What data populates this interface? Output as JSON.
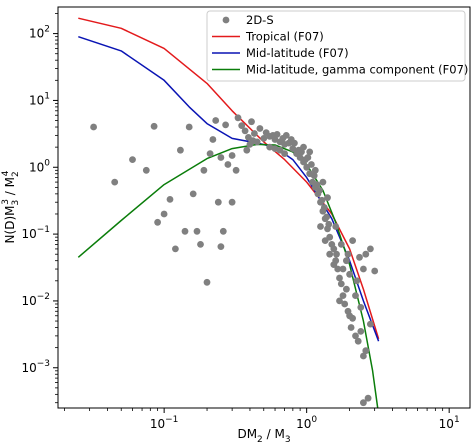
{
  "chart_data": {
    "type": "scatter",
    "title": "",
    "xlabel": {
      "base": "DM",
      "sub1": "2",
      "mid": " / M",
      "sub2": "3"
    },
    "ylabel": {
      "base": "N(D)M",
      "sub1": "3",
      "sup1": "3",
      "mid": " / M",
      "sub2": "2",
      "sup2": "4"
    },
    "xscale": "log",
    "yscale": "log",
    "xlim": [
      0.018,
      14
    ],
    "ylim": [
      0.00025,
      250
    ],
    "x_ticks": [
      {
        "value": 0.1,
        "base": "10",
        "exp": "−1"
      },
      {
        "value": 1,
        "base": "10",
        "exp": "0"
      },
      {
        "value": 10,
        "base": "10",
        "exp": "1"
      }
    ],
    "y_ticks": [
      {
        "value": 0.001,
        "base": "10",
        "exp": "−3"
      },
      {
        "value": 0.01,
        "base": "10",
        "exp": "−2"
      },
      {
        "value": 0.1,
        "base": "10",
        "exp": "−1"
      },
      {
        "value": 1,
        "base": "10",
        "exp": "0"
      },
      {
        "value": 10,
        "base": "10",
        "exp": "1"
      },
      {
        "value": 100,
        "base": "10",
        "exp": "2"
      }
    ],
    "grid": false,
    "legend_position": "top-right",
    "legend": [
      {
        "label": "2D-S",
        "kind": "marker",
        "color": "#808080"
      },
      {
        "label": "Tropical (F07)",
        "kind": "line",
        "color": "#e31a1c"
      },
      {
        "label": "Mid-latitude (F07)",
        "kind": "line",
        "color": "#0a14b4"
      },
      {
        "label": "Mid-latitude, gamma component (F07)",
        "kind": "line",
        "color": "#0a7d0a"
      }
    ],
    "series": [
      {
        "name": "Tropical (F07)",
        "kind": "line",
        "color": "#e31a1c",
        "x": [
          0.025,
          0.05,
          0.1,
          0.2,
          0.3,
          0.5,
          0.7,
          1.0,
          1.5,
          2.0,
          2.5,
          3.2
        ],
        "y": [
          170,
          120,
          60,
          18,
          7,
          2.4,
          1.3,
          0.6,
          0.2,
          0.06,
          0.015,
          0.0027
        ]
      },
      {
        "name": "Mid-latitude (F07)",
        "kind": "line",
        "color": "#0a14b4",
        "x": [
          0.025,
          0.05,
          0.1,
          0.15,
          0.2,
          0.3,
          0.45,
          0.6,
          0.8,
          1.0,
          1.5,
          2.0,
          2.5,
          3.2
        ],
        "y": [
          90,
          55,
          20,
          8,
          4.5,
          2.7,
          2.3,
          2.0,
          1.3,
          0.7,
          0.17,
          0.04,
          0.01,
          0.0025
        ]
      },
      {
        "name": "Mid-latitude, gamma component (F07)",
        "kind": "line",
        "color": "#0a7d0a",
        "x": [
          0.025,
          0.05,
          0.1,
          0.2,
          0.3,
          0.45,
          0.6,
          0.8,
          1.0,
          1.3,
          1.6,
          2.0,
          2.5,
          2.9,
          3.2
        ],
        "y": [
          0.045,
          0.16,
          0.55,
          1.35,
          1.9,
          2.2,
          2.15,
          1.7,
          1.1,
          0.45,
          0.15,
          0.035,
          0.005,
          0.0009,
          0.0002
        ]
      },
      {
        "name": "2D-S",
        "kind": "scatter",
        "color": "#808080",
        "points": [
          [
            0.032,
            4.0
          ],
          [
            0.045,
            0.6
          ],
          [
            0.06,
            1.3
          ],
          [
            0.075,
            0.9
          ],
          [
            0.085,
            4.1
          ],
          [
            0.09,
            0.15
          ],
          [
            0.1,
            0.2
          ],
          [
            0.11,
            0.33
          ],
          [
            0.12,
            0.06
          ],
          [
            0.13,
            1.8
          ],
          [
            0.14,
            0.11
          ],
          [
            0.15,
            4.0
          ],
          [
            0.16,
            0.4
          ],
          [
            0.17,
            0.11
          ],
          [
            0.18,
            0.07
          ],
          [
            0.19,
            0.9
          ],
          [
            0.2,
            0.019
          ],
          [
            0.21,
            1.6
          ],
          [
            0.22,
            2.6
          ],
          [
            0.23,
            5.0
          ],
          [
            0.24,
            0.3
          ],
          [
            0.25,
            0.065
          ],
          [
            0.26,
            0.11
          ],
          [
            0.27,
            4.3
          ],
          [
            0.28,
            1.1
          ],
          [
            0.3,
            0.3
          ],
          [
            0.32,
            0.9
          ],
          [
            0.33,
            5.5
          ],
          [
            0.35,
            4.2
          ],
          [
            0.37,
            3.5
          ],
          [
            0.39,
            2.8
          ],
          [
            0.41,
            4.8
          ],
          [
            0.43,
            3.2
          ],
          [
            0.45,
            2.4
          ],
          [
            0.47,
            3.8
          ],
          [
            0.5,
            2.7
          ],
          [
            0.52,
            3.3
          ],
          [
            0.55,
            2.9
          ],
          [
            0.58,
            3.0
          ],
          [
            0.6,
            2.6
          ],
          [
            0.62,
            3.1
          ],
          [
            0.65,
            2.4
          ],
          [
            0.68,
            2.7
          ],
          [
            0.7,
            2.2
          ],
          [
            0.72,
            3.0
          ],
          [
            0.75,
            2.3
          ],
          [
            0.78,
            2.6
          ],
          [
            0.8,
            1.9
          ],
          [
            0.82,
            2.3
          ],
          [
            0.85,
            1.6
          ],
          [
            0.88,
            1.8
          ],
          [
            0.9,
            1.4
          ],
          [
            0.92,
            1.7
          ],
          [
            0.95,
            1.2
          ],
          [
            0.98,
            1.3
          ],
          [
            1.0,
            1.0
          ],
          [
            1.02,
            1.4
          ],
          [
            1.05,
            0.8
          ],
          [
            1.08,
            1.1
          ],
          [
            1.1,
            0.6
          ],
          [
            1.13,
            0.75
          ],
          [
            1.15,
            0.5
          ],
          [
            1.18,
            0.55
          ],
          [
            1.2,
            0.4
          ],
          [
            1.23,
            0.45
          ],
          [
            1.25,
            0.3
          ],
          [
            1.28,
            0.32
          ],
          [
            1.3,
            0.22
          ],
          [
            1.33,
            0.25
          ],
          [
            1.35,
            0.17
          ],
          [
            1.38,
            0.18
          ],
          [
            1.4,
            0.12
          ],
          [
            1.43,
            0.14
          ],
          [
            1.45,
            0.09
          ],
          [
            1.5,
            0.07
          ],
          [
            1.55,
            0.06
          ],
          [
            1.6,
            0.04
          ],
          [
            1.62,
            0.05
          ],
          [
            1.65,
            0.03
          ],
          [
            1.7,
            0.022
          ],
          [
            1.75,
            0.018
          ],
          [
            1.8,
            0.012
          ],
          [
            1.85,
            0.009
          ],
          [
            1.9,
            0.015
          ],
          [
            1.95,
            0.007
          ],
          [
            2.0,
            0.006
          ],
          [
            2.05,
            0.004
          ],
          [
            2.1,
            0.0055
          ],
          [
            2.2,
            0.003
          ],
          [
            2.3,
            0.0025
          ],
          [
            2.4,
            0.0035
          ],
          [
            2.5,
            0.0015
          ],
          [
            2.6,
            0.0018
          ],
          [
            2.5,
            0.0003
          ],
          [
            2.7,
            0.00035
          ],
          [
            2.8,
            0.0045
          ],
          [
            1.3,
            0.6
          ],
          [
            1.15,
            0.9
          ],
          [
            1.4,
            0.35
          ],
          [
            1.6,
            0.13
          ],
          [
            1.75,
            0.07
          ],
          [
            1.9,
            0.04
          ],
          [
            2.0,
            0.025
          ],
          [
            2.2,
            0.012
          ],
          [
            2.4,
            0.008
          ],
          [
            2.5,
            0.03
          ],
          [
            2.6,
            0.05
          ],
          [
            2.8,
            0.06
          ],
          [
            3.0,
            0.028
          ],
          [
            0.95,
            2.0
          ],
          [
            1.05,
            1.7
          ],
          [
            0.7,
            1.6
          ],
          [
            0.65,
            1.8
          ],
          [
            0.6,
            1.9
          ],
          [
            0.55,
            2.0
          ],
          [
            0.4,
            2.2
          ],
          [
            0.38,
            1.8
          ],
          [
            0.42,
            2.5
          ],
          [
            0.3,
            1.5
          ],
          [
            0.25,
            1.4
          ],
          [
            1.25,
            0.13
          ],
          [
            1.35,
            0.08
          ],
          [
            1.45,
            0.05
          ],
          [
            1.55,
            0.035
          ],
          [
            1.7,
            0.01
          ],
          [
            1.8,
            0.03
          ],
          [
            1.95,
            0.05
          ],
          [
            2.1,
            0.08
          ],
          [
            2.25,
            0.02
          ],
          [
            2.35,
            0.045
          ]
        ]
      }
    ]
  }
}
